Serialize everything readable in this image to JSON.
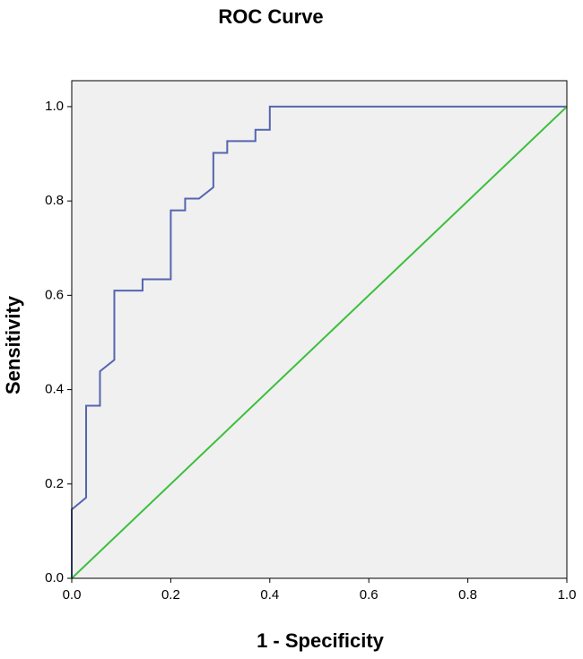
{
  "chart_data": {
    "type": "line",
    "title": "ROC Curve",
    "xlabel": "1 - Specificity",
    "ylabel": "Sensitivity",
    "xlim": [
      0,
      1
    ],
    "ylim": [
      0,
      1.055
    ],
    "xticks": [
      {
        "value": 0,
        "label": "0.0"
      },
      {
        "value": 0.2,
        "label": "0.2"
      },
      {
        "value": 0.4,
        "label": "0.4"
      },
      {
        "value": 0.6,
        "label": "0.6"
      },
      {
        "value": 0.8,
        "label": "0.8"
      },
      {
        "value": 1,
        "label": "1.0"
      }
    ],
    "yticks": [
      {
        "value": 0,
        "label": "0.0"
      },
      {
        "value": 0.2,
        "label": "0.2"
      },
      {
        "value": 0.4,
        "label": "0.4"
      },
      {
        "value": 0.6,
        "label": "0.6"
      },
      {
        "value": 0.8,
        "label": "0.8"
      },
      {
        "value": 1,
        "label": "1.0"
      }
    ],
    "background": "#f0f0f0",
    "series": [
      {
        "color": "#5565b0",
        "x": [
          0,
          0,
          0.029,
          0.029,
          0.057,
          0.057,
          0.086,
          0.086,
          0.143,
          0.143,
          0.2,
          0.2,
          0.229,
          0.229,
          0.257,
          0.286,
          0.286,
          0.314,
          0.314,
          0.371,
          0.371,
          0.4,
          0.4,
          1.0
        ],
        "values": [
          0,
          0.146,
          0.171,
          0.366,
          0.366,
          0.439,
          0.463,
          0.61,
          0.61,
          0.634,
          0.634,
          0.78,
          0.78,
          0.805,
          0.805,
          0.829,
          0.902,
          0.902,
          0.927,
          0.927,
          0.951,
          0.951,
          1,
          1
        ]
      },
      {
        "color": "#3cbf3c",
        "x": [
          0,
          1
        ],
        "values": [
          0,
          1
        ]
      }
    ]
  }
}
